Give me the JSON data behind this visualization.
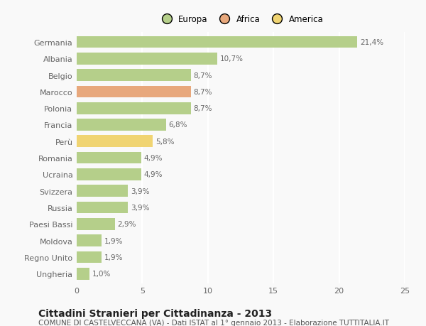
{
  "categories": [
    "Germania",
    "Albania",
    "Belgio",
    "Marocco",
    "Polonia",
    "Francia",
    "Perù",
    "Romania",
    "Ucraina",
    "Svizzera",
    "Russia",
    "Paesi Bassi",
    "Moldova",
    "Regno Unito",
    "Ungheria"
  ],
  "values": [
    21.4,
    10.7,
    8.7,
    8.7,
    8.7,
    6.8,
    5.8,
    4.9,
    4.9,
    3.9,
    3.9,
    2.9,
    1.9,
    1.9,
    1.0
  ],
  "labels": [
    "21,4%",
    "10,7%",
    "8,7%",
    "8,7%",
    "8,7%",
    "6,8%",
    "5,8%",
    "4,9%",
    "4,9%",
    "3,9%",
    "3,9%",
    "2,9%",
    "1,9%",
    "1,9%",
    "1,0%"
  ],
  "colors": [
    "#b5cf8a",
    "#b5cf8a",
    "#b5cf8a",
    "#e8a87c",
    "#b5cf8a",
    "#b5cf8a",
    "#f0d472",
    "#b5cf8a",
    "#b5cf8a",
    "#b5cf8a",
    "#b5cf8a",
    "#b5cf8a",
    "#b5cf8a",
    "#b5cf8a",
    "#b5cf8a"
  ],
  "legend_labels": [
    "Europa",
    "Africa",
    "America"
  ],
  "legend_colors": [
    "#b5cf8a",
    "#e8a87c",
    "#f0d472"
  ],
  "title": "Cittadini Stranieri per Cittadinanza - 2013",
  "subtitle": "COMUNE DI CASTELVECCANA (VA) - Dati ISTAT al 1° gennaio 2013 - Elaborazione TUTTITALIA.IT",
  "xlim": [
    0,
    25
  ],
  "xticks": [
    0,
    5,
    10,
    15,
    20,
    25
  ],
  "background_color": "#f9f9f9",
  "grid_color": "#ffffff",
  "title_fontsize": 10,
  "subtitle_fontsize": 7.5,
  "label_fontsize": 7.5,
  "tick_fontsize": 8,
  "legend_fontsize": 8.5
}
